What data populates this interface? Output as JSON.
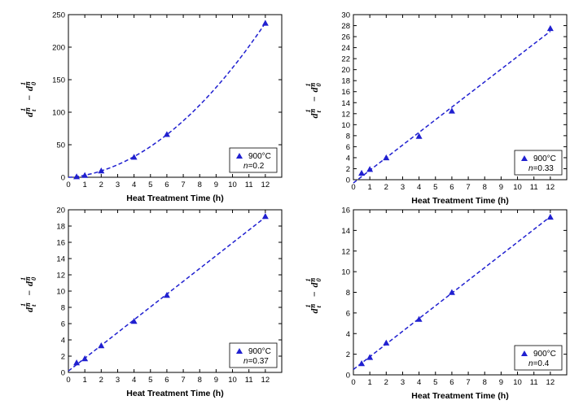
{
  "chart_data": [
    {
      "type": "scatter",
      "xlabel": "Heat Treatment Time (h)",
      "ylabel_parts": {
        "d_t": "d",
        "t_sub": "t",
        "minus": "−",
        "d_0": "d",
        "zero_sub": "0",
        "exp_num": "1",
        "exp_den": "n"
      },
      "xlim": [
        0,
        13
      ],
      "ylim": [
        0,
        250
      ],
      "xticks": [
        0,
        1,
        2,
        3,
        4,
        5,
        6,
        7,
        8,
        9,
        10,
        11,
        12
      ],
      "yticks": [
        0,
        50,
        100,
        150,
        200,
        250
      ],
      "legend_position": "bottom-right",
      "series": [
        {
          "name": "900°C",
          "note_label": "n",
          "note_value": "=0.2",
          "x": [
            0.5,
            1,
            2,
            4,
            6,
            12
          ],
          "y": [
            1,
            3,
            10,
            31,
            66,
            237
          ],
          "fit": "quadratic",
          "color": "#2020d0"
        }
      ]
    },
    {
      "type": "scatter",
      "xlabel": "Heat Treatment Time (h)",
      "ylabel_parts": {
        "d_t": "d",
        "t_sub": "t",
        "minus": "−",
        "d_0": "d",
        "zero_sub": "0",
        "exp_num": "1",
        "exp_den": "n"
      },
      "xlim": [
        0,
        13
      ],
      "ylim": [
        0,
        30
      ],
      "xticks": [
        0,
        1,
        2,
        3,
        4,
        5,
        6,
        7,
        8,
        9,
        10,
        11,
        12
      ],
      "yticks": [
        0,
        2,
        4,
        6,
        8,
        10,
        12,
        14,
        16,
        18,
        20,
        22,
        24,
        26,
        28,
        30
      ],
      "legend_position": "bottom-right",
      "series": [
        {
          "name": "900°C",
          "note_label": "n",
          "note_value": "=0.33",
          "x": [
            0.5,
            1,
            2,
            4,
            6,
            12
          ],
          "y": [
            1.2,
            1.9,
            4.0,
            7.9,
            12.5,
            27.5
          ],
          "fit": "linear",
          "color": "#2020d0"
        }
      ]
    },
    {
      "type": "scatter",
      "xlabel": "Heat Treatment Time (h)",
      "ylabel_parts": {
        "d_t": "d",
        "t_sub": "t",
        "minus": "−",
        "d_0": "d",
        "zero_sub": "0",
        "exp_num": "1",
        "exp_den": "n"
      },
      "xlim": [
        0,
        13
      ],
      "ylim": [
        0,
        20
      ],
      "xticks": [
        0,
        1,
        2,
        3,
        4,
        5,
        6,
        7,
        8,
        9,
        10,
        11,
        12
      ],
      "yticks": [
        0,
        2,
        4,
        6,
        8,
        10,
        12,
        14,
        16,
        18,
        20
      ],
      "legend_position": "bottom-right",
      "series": [
        {
          "name": "900°C",
          "note_label": "n",
          "note_value": "=0.37",
          "x": [
            0.5,
            1,
            2,
            4,
            6,
            12
          ],
          "y": [
            1.2,
            1.7,
            3.3,
            6.3,
            9.5,
            19.2
          ],
          "fit": "linear",
          "color": "#2020d0"
        }
      ]
    },
    {
      "type": "scatter",
      "xlabel": "Heat Treatment Time (h)",
      "ylabel_parts": {
        "d_t": "d",
        "t_sub": "t",
        "minus": "−",
        "d_0": "d",
        "zero_sub": "0",
        "exp_num": "1",
        "exp_den": "n"
      },
      "xlim": [
        0,
        13
      ],
      "ylim": [
        0,
        16
      ],
      "xticks": [
        0,
        1,
        2,
        3,
        4,
        5,
        6,
        7,
        8,
        9,
        10,
        11,
        12
      ],
      "yticks": [
        0,
        2,
        4,
        6,
        8,
        10,
        12,
        14,
        16
      ],
      "legend_position": "bottom-right",
      "series": [
        {
          "name": "900°C",
          "note_label": "n",
          "note_value": "=0.4",
          "x": [
            0.5,
            1,
            2,
            4,
            6,
            12
          ],
          "y": [
            1.1,
            1.7,
            3.1,
            5.4,
            8.0,
            15.3
          ],
          "fit": "linear",
          "color": "#2020d0"
        }
      ]
    }
  ]
}
